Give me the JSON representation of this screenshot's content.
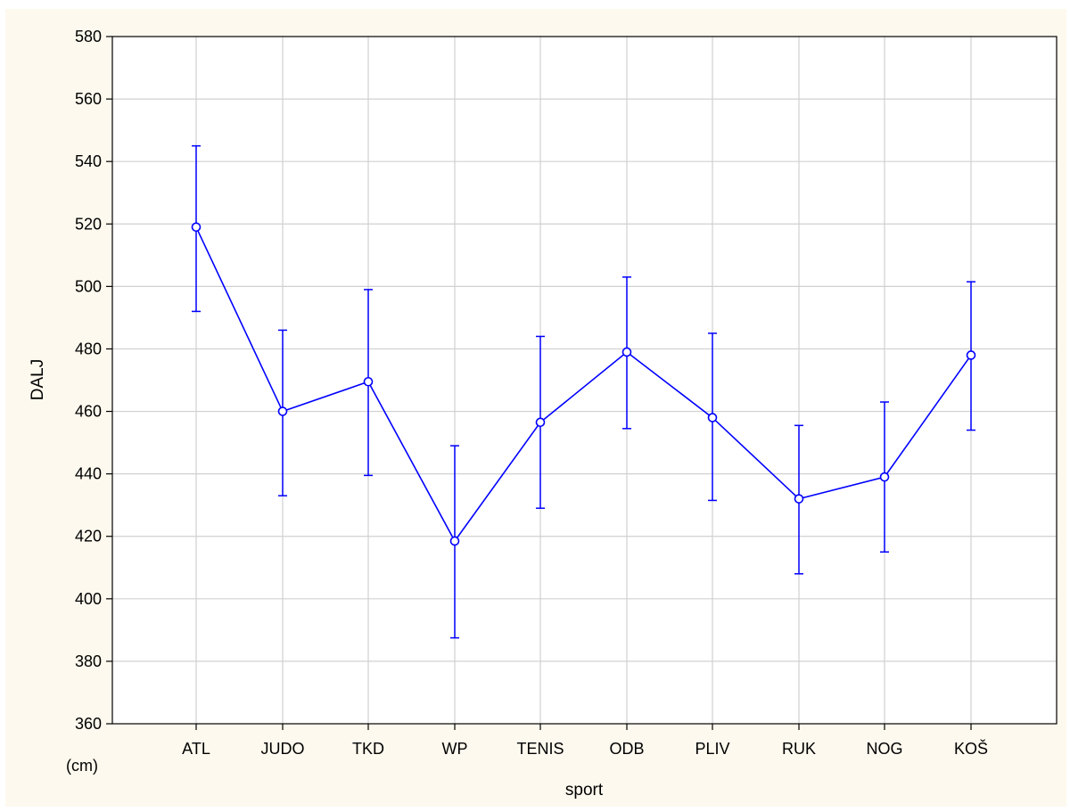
{
  "chart_data": {
    "type": "line",
    "xlabel": "sport",
    "ylabel": "DALJ",
    "unit_label": "(cm)",
    "ylim": [
      360,
      580
    ],
    "y_ticks": [
      360,
      380,
      400,
      420,
      440,
      460,
      480,
      500,
      520,
      540,
      560,
      580
    ],
    "grid": true,
    "error_bars": true,
    "categories": [
      "ATL",
      "JUDO",
      "TKD",
      "WP",
      "TENIS",
      "ODB",
      "PLIV",
      "RUK",
      "NOG",
      "KOŠ"
    ],
    "series": [
      {
        "values": [
          519,
          460,
          469.5,
          418.5,
          456.5,
          479,
          458,
          432,
          439,
          478
        ],
        "lower": [
          492,
          433,
          439.5,
          387.5,
          429,
          454.5,
          431.5,
          408,
          415,
          454
        ],
        "upper": [
          545,
          486,
          499,
          449,
          484,
          503,
          485,
          455.5,
          463,
          501.5
        ]
      }
    ],
    "colors": {
      "series": "#0000ff",
      "grid": "#d0d0d0",
      "background": "#fdf9ee",
      "plot_background": "#ffffff"
    }
  }
}
